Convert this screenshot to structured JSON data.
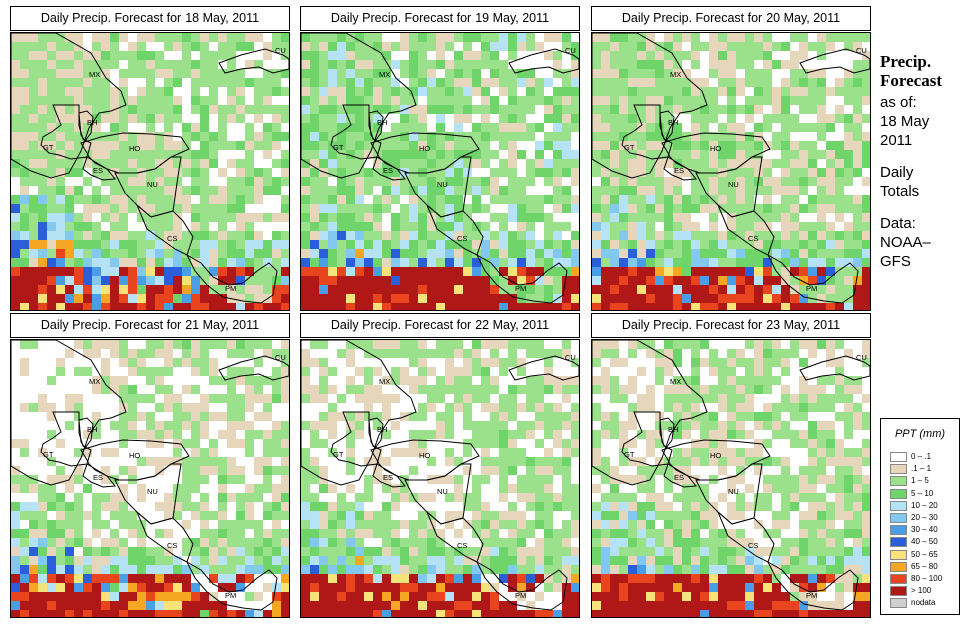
{
  "title_prefix": "Daily Precip. Forecast for",
  "panels": [
    {
      "date": "18 May, 2011",
      "scheme": "p18"
    },
    {
      "date": "19 May, 2011",
      "scheme": "p19"
    },
    {
      "date": "20 May, 2011",
      "scheme": "p20"
    },
    {
      "date": "21 May, 2011",
      "scheme": "p21"
    },
    {
      "date": "22 May, 2011",
      "scheme": "p22"
    },
    {
      "date": "23 May, 2011",
      "scheme": "p23"
    }
  ],
  "country_labels": [
    "MX",
    "BH",
    "GT",
    "HO",
    "ES",
    "NU",
    "CS",
    "PM",
    "CU"
  ],
  "side": {
    "head1": "Precip.",
    "head2": "Forecast",
    "line1": "as of:",
    "line2": "18 May",
    "line3": "2011",
    "line4": "Daily",
    "line5": "Totals",
    "line6": "Data:",
    "line7": "NOAA–",
    "line8": "GFS"
  },
  "legend": {
    "title": "PPT (mm)",
    "items": [
      {
        "label": "0 – .1",
        "color": "#ffffff"
      },
      {
        "label": ".1 – 1",
        "color": "#e6d6bc"
      },
      {
        "label": "1 – 5",
        "color": "#9be08a"
      },
      {
        "label": "5 – 10",
        "color": "#6fd46a"
      },
      {
        "label": "10 – 20",
        "color": "#b5e3f5"
      },
      {
        "label": "20 – 30",
        "color": "#82c8ef"
      },
      {
        "label": "30 – 40",
        "color": "#4a9ee6"
      },
      {
        "label": "40 – 50",
        "color": "#2b5fd9"
      },
      {
        "label": "50 – 65",
        "color": "#f8e27a"
      },
      {
        "label": "65 – 80",
        "color": "#f5a623"
      },
      {
        "label": "80 – 100",
        "color": "#e8451e"
      },
      {
        "label": "> 100",
        "color": "#b01818"
      },
      {
        "label": "nodata",
        "color": "#cfcfcf"
      }
    ]
  }
}
